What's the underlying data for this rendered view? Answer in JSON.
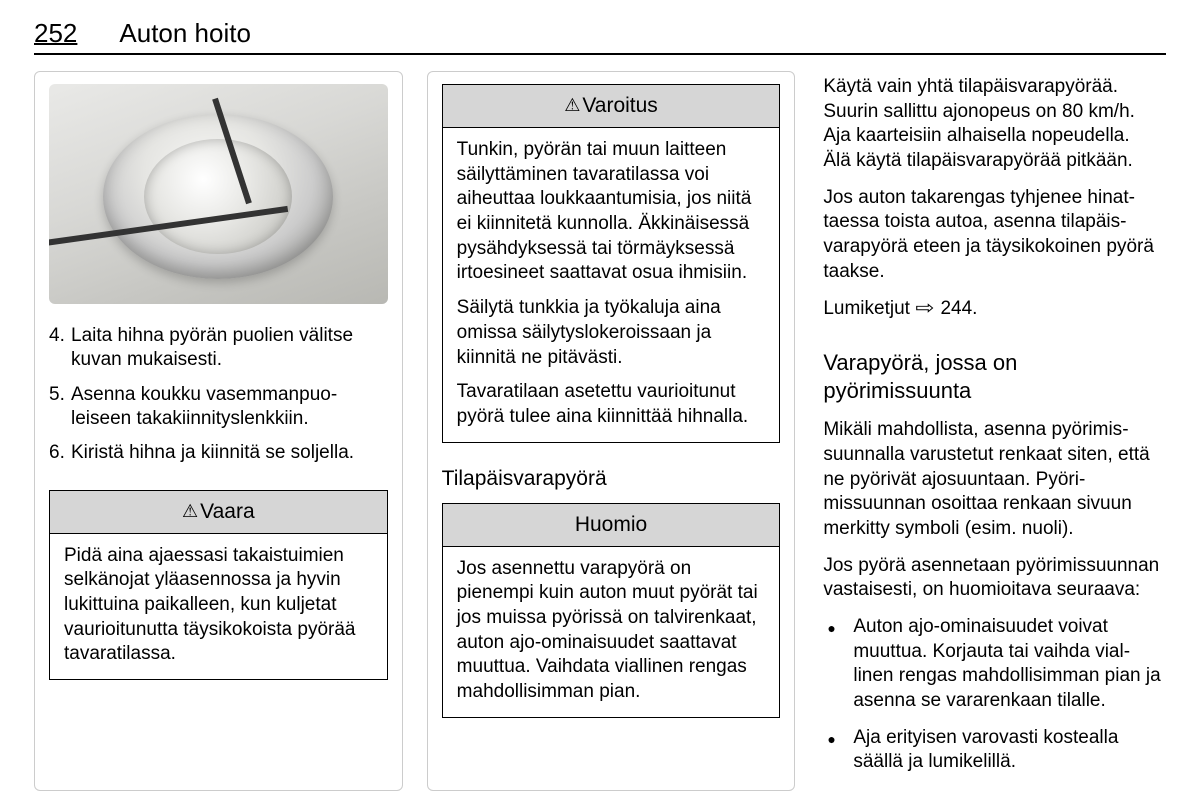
{
  "header": {
    "page_number": "252",
    "section_title": "Auton hoito"
  },
  "col1": {
    "steps": [
      {
        "num": "4.",
        "text": "Laita hihna pyörän puolien välitse kuvan mukaisesti."
      },
      {
        "num": "5.",
        "text": "Asenna koukku vasemmanpuo­leiseen takakiinnityslenkkiin."
      },
      {
        "num": "6.",
        "text": "Kiristä hihna ja kiinnitä se soljella."
      }
    ],
    "danger_box": {
      "title": "Vaara",
      "body": "Pidä aina ajaessasi takaistuimien selkänojat yläasennossa ja hyvin lukittuina paikalleen, kun kuljetat vaurioitunutta täysikokoista pyörää tavaratilassa."
    }
  },
  "col2": {
    "warning_box": {
      "title": "Varoitus",
      "p1": "Tunkin, pyörän tai muun laitteen säilyttäminen tavaratilassa voi aiheuttaa loukkaantumisia, jos niitä ei kiinnitetä kunnolla. Äkkinäi­sessä pysähdyksessä tai törmäyk­sessä irtoesineet saattavat osua ihmisiin.",
      "p2": "Säilytä tunkkia ja työkaluja aina omissa säilytyslokeroissaan ja kiinnitä ne pitävästi.",
      "p3": "Tavaratilaan asetettu vaurioitunut pyörä tulee aina kiinnittää hihnalla."
    },
    "subhead": "Tilapäisvarapyörä",
    "notice_box": {
      "title": "Huomio",
      "body": "Jos asennettu varapyörä on pienempi kuin auton muut pyörät tai jos muissa pyörissä on talviren­kaat, auton ajo-ominaisuudet saattavat muuttua. Vaihdata vialli­nen rengas mahdollisimman pian."
    }
  },
  "col3": {
    "p1": "Käytä vain yhtä tilapäisvarapyörää. Suurin sallittu ajonopeus on 80 km/h. Aja kaarteisiin alhaisella nopeudella. Älä käytä tilapäisvarapyörää pitkään.",
    "p2": "Jos auton takarengas tyhjenee hinat­taessa toista autoa, asenna tilapäis­varapyörä eteen ja täysikokoinen pyörä taakse.",
    "ref_label": "Lumiketjut",
    "ref_page": "244.",
    "subhead": "Varapyörä, jossa on pyörimissuunta",
    "p3": "Mikäli mahdollista, asenna pyörimis­suunnalla varustetut renkaat siten, että ne pyörivät ajosuuntaan. Pyöri­missuunnan osoittaa renkaan sivuun merkitty symboli (esim. nuoli).",
    "p4": "Jos pyörä asennetaan pyörimissuun­nan vastaisesti, on huomioitava seuraava:",
    "bullets": [
      "Auton ajo-ominaisuudet voivat muuttua. Korjauta tai vaihda vial­linen rengas mahdollisimman pian ja asenna se vararenkaan tilalle.",
      "Aja erityisen varovasti kostealla säällä ja lumikelillä."
    ]
  }
}
